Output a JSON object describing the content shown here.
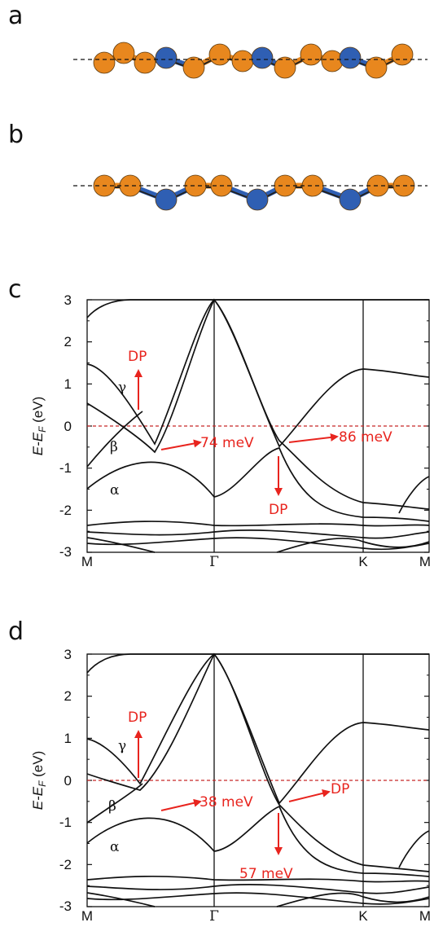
{
  "panels": {
    "a": {
      "label": "a"
    },
    "b": {
      "label": "b"
    },
    "c": {
      "label": "c",
      "ylabel": "E-E",
      "ylabel_sub": "F",
      "ylabel_unit": " (eV)",
      "yticks": [
        "3",
        "2",
        "1",
        "0",
        "-1",
        "-2",
        "-3"
      ],
      "kpoints": [
        "M",
        "Γ",
        "K",
        "M"
      ],
      "bands": [
        "γ",
        "β",
        "α"
      ],
      "ann_dp_up": "DP",
      "ann_gap1": "74 meV",
      "ann_gap2": "86 meV",
      "ann_dp_down": "DP"
    },
    "d": {
      "label": "d",
      "ylabel": "E-E",
      "ylabel_sub": "F",
      "ylabel_unit": " (eV)",
      "yticks": [
        "3",
        "2",
        "1",
        "0",
        "-1",
        "-2",
        "-3"
      ],
      "kpoints": [
        "M",
        "Γ",
        "K",
        "M"
      ],
      "bands": [
        "γ",
        "β",
        "α"
      ],
      "ann_dp_up": "DP",
      "ann_gap1": "38 meV",
      "ann_dp_right": "DP",
      "ann_gap2": "57 meV"
    }
  },
  "colors": {
    "orange_atom": "#e8871e",
    "blue_atom": "#2f5fb3",
    "fermi_line": "#c62828",
    "annotation": "#e8241e"
  },
  "chart_data": [
    {
      "type": "line",
      "panel": "c",
      "ylabel": "E-EF (eV)",
      "ylim": [
        -3,
        3
      ],
      "x_ticks": [
        "M",
        "Γ",
        "K",
        "M"
      ],
      "fermi_level": 0,
      "gaps_meV": [
        74,
        86
      ],
      "band_labels": [
        "γ",
        "β",
        "α"
      ]
    },
    {
      "type": "line",
      "panel": "d",
      "ylabel": "E-EF (eV)",
      "ylim": [
        -3,
        3
      ],
      "x_ticks": [
        "M",
        "Γ",
        "K",
        "M"
      ],
      "fermi_level": 0,
      "gaps_meV": [
        38,
        57
      ],
      "band_labels": [
        "γ",
        "β",
        "α"
      ]
    }
  ]
}
